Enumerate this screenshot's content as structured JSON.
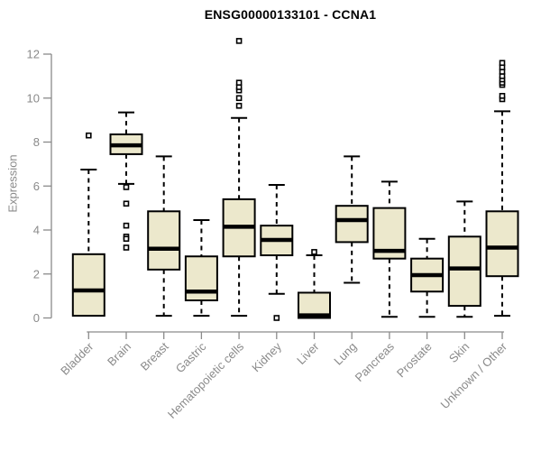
{
  "chart_data": {
    "type": "boxplot",
    "title": "ENSG00000133101 - CCNA1",
    "ylabel": "Expression",
    "xlabel": "",
    "ylim": [
      0,
      12
    ],
    "yticks": [
      0,
      2,
      4,
      6,
      8,
      10,
      12
    ],
    "grid": false,
    "legend": "none",
    "categories": [
      "Bladder",
      "Brain",
      "Breast",
      "Gastric",
      "Hematopoietic cells",
      "Kidney",
      "Liver",
      "Lung",
      "Pancreas",
      "Prostate",
      "Skin",
      "Unknown / Other"
    ],
    "series": [
      {
        "name": "Bladder",
        "whislo": 0.1,
        "q1": 0.1,
        "med": 1.25,
        "q3": 2.9,
        "whishi": 6.75,
        "outliers": [
          8.3
        ]
      },
      {
        "name": "Brain",
        "whislo": 6.1,
        "q1": 7.45,
        "med": 7.85,
        "q3": 8.35,
        "whishi": 9.35,
        "outliers": [
          5.95,
          5.2,
          4.2,
          3.7,
          3.6,
          3.2
        ]
      },
      {
        "name": "Breast",
        "whislo": 0.1,
        "q1": 2.2,
        "med": 3.15,
        "q3": 4.85,
        "whishi": 7.35,
        "outliers": []
      },
      {
        "name": "Gastric",
        "whislo": 0.1,
        "q1": 0.8,
        "med": 1.2,
        "q3": 2.8,
        "whishi": 4.45,
        "outliers": []
      },
      {
        "name": "Hematopoietic cells",
        "whislo": 0.1,
        "q1": 2.8,
        "med": 4.15,
        "q3": 5.4,
        "whishi": 9.1,
        "outliers": [
          9.65,
          10.0,
          10.35,
          10.5,
          10.7,
          12.6
        ]
      },
      {
        "name": "Kidney",
        "whislo": 1.1,
        "q1": 2.85,
        "med": 3.55,
        "q3": 4.2,
        "whishi": 6.05,
        "outliers": [
          0.0
        ]
      },
      {
        "name": "Liver",
        "whislo": 0.0,
        "q1": 0.0,
        "med": 0.12,
        "q3": 1.15,
        "whishi": 2.85,
        "outliers": [
          3.0
        ]
      },
      {
        "name": "Lung",
        "whislo": 1.6,
        "q1": 3.45,
        "med": 4.45,
        "q3": 5.1,
        "whishi": 7.35,
        "outliers": []
      },
      {
        "name": "Pancreas",
        "whislo": 0.05,
        "q1": 2.7,
        "med": 3.05,
        "q3": 5.0,
        "whishi": 6.2,
        "outliers": []
      },
      {
        "name": "Prostate",
        "whislo": 0.05,
        "q1": 1.2,
        "med": 1.95,
        "q3": 2.7,
        "whishi": 3.6,
        "outliers": []
      },
      {
        "name": "Skin",
        "whislo": 0.05,
        "q1": 0.55,
        "med": 2.25,
        "q3": 3.7,
        "whishi": 5.3,
        "outliers": []
      },
      {
        "name": "Unknown / Other",
        "whislo": 0.1,
        "q1": 1.9,
        "med": 3.2,
        "q3": 4.85,
        "whishi": 9.4,
        "outliers": [
          9.95,
          10.1,
          10.6,
          10.7,
          10.85,
          11.0,
          11.2,
          11.4,
          11.6
        ]
      }
    ],
    "colors": {
      "box_fill": "#ECE8CC",
      "box_stroke": "#000000",
      "median": "#000000",
      "whisker": "#000000",
      "outlier_stroke": "#000000",
      "axis": "#8A8A8A",
      "tick_text": "#8A8A8A",
      "title_text": "#000000",
      "background": "#FFFFFF"
    }
  }
}
